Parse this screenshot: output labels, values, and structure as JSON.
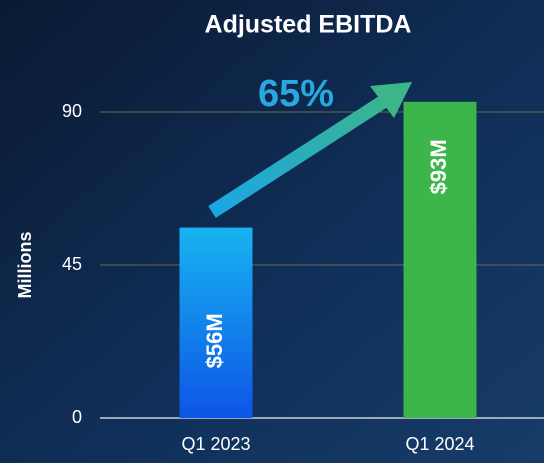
{
  "chart_data": {
    "type": "bar",
    "title": "Adjusted EBITDA",
    "y_label": "Millions",
    "categories": [
      "Q1 2023",
      "Q1 2024"
    ],
    "values": [
      56,
      93
    ],
    "value_labels": [
      "$56M",
      "$93M"
    ],
    "colors": [
      "#1a9ff0",
      "#3cb54a"
    ],
    "ylim": [
      0,
      100
    ],
    "yticks": [
      0,
      45,
      90
    ],
    "grid": true,
    "annotation": "65%"
  }
}
